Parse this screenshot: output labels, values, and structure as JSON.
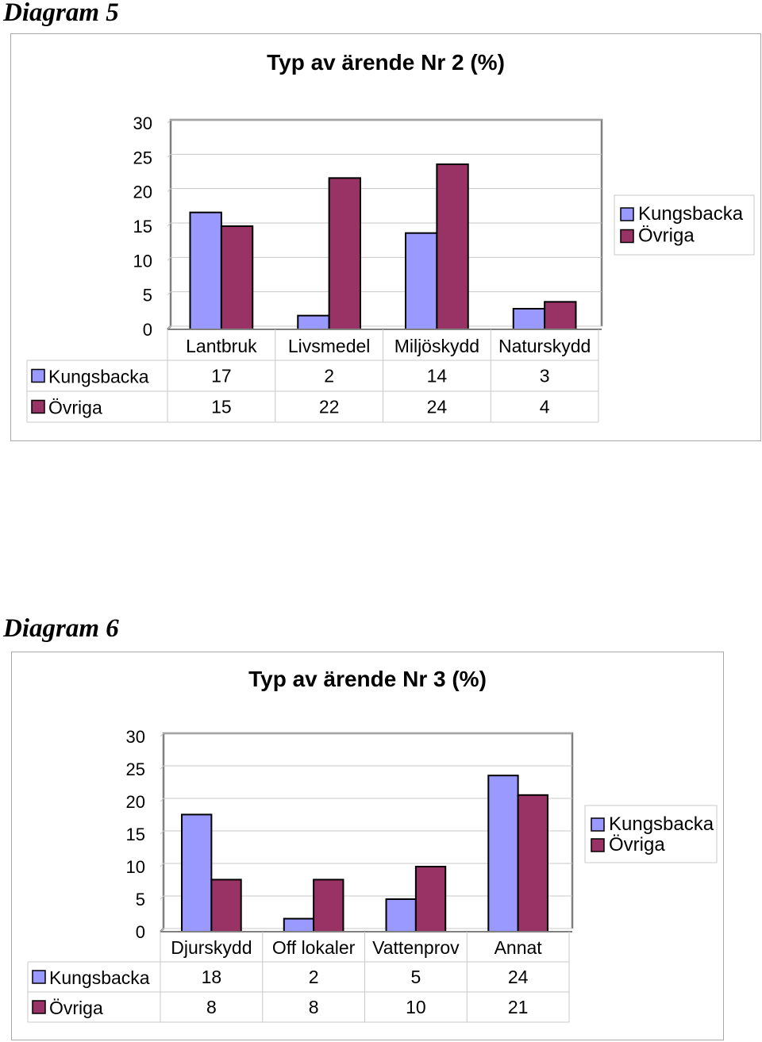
{
  "headings": [
    "Diagram 5",
    "Diagram 6"
  ],
  "colors": {
    "kungsbacka": "#9999ff",
    "ovriga": "#993366",
    "grid": "#c8c8c8",
    "axis": "#808080"
  },
  "chart_data": [
    {
      "type": "bar",
      "title": "Typ av ärende Nr 2 (%)",
      "categories": [
        "Lantbruk",
        "Livsmedel",
        "Miljöskydd",
        "Naturskydd"
      ],
      "series": [
        {
          "name": "Kungsbacka",
          "values": [
            17,
            2,
            14,
            3
          ]
        },
        {
          "name": "Övriga",
          "values": [
            15,
            22,
            24,
            4
          ]
        }
      ],
      "ylim": [
        0,
        30
      ],
      "yticks": [
        0,
        5,
        10,
        15,
        20,
        25,
        30
      ],
      "grid": true,
      "legend": "right",
      "data_table": true
    },
    {
      "type": "bar",
      "title": "Typ av ärende Nr 3 (%)",
      "categories": [
        "Djurskydd",
        "Off lokaler",
        "Vattenprov",
        "Annat"
      ],
      "series": [
        {
          "name": "Kungsbacka",
          "values": [
            18,
            2,
            5,
            24
          ]
        },
        {
          "name": "Övriga",
          "values": [
            8,
            8,
            10,
            21
          ]
        }
      ],
      "ylim": [
        0,
        30
      ],
      "yticks": [
        0,
        5,
        10,
        15,
        20,
        25,
        30
      ],
      "grid": true,
      "legend": "right",
      "data_table": true
    }
  ]
}
